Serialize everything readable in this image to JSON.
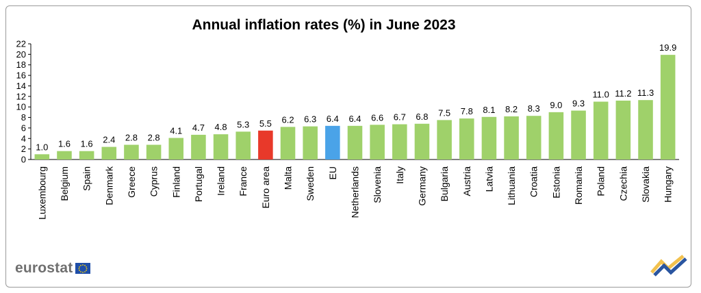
{
  "brand": {
    "logo_text": "eurostat"
  },
  "chart_data": {
    "type": "bar",
    "title": "Annual inflation rates (%) in June 2023",
    "xlabel": "",
    "ylabel": "",
    "ylim": [
      0,
      22
    ],
    "yticks": [
      0,
      2,
      4,
      6,
      8,
      10,
      12,
      14,
      16,
      18,
      20,
      22
    ],
    "grid": false,
    "categories": [
      "Luxembourg",
      "Belgium",
      "Spain",
      "Denmark",
      "Greece",
      "Cyprus",
      "Finland",
      "Portugal",
      "Ireland",
      "France",
      "Euro area",
      "Malta",
      "Sweden",
      "EU",
      "Netherlands",
      "Slovenia",
      "Italy",
      "Germany",
      "Bulgaria",
      "Austria",
      "Latvia",
      "Lithuania",
      "Croatia",
      "Estonia",
      "Romania",
      "Poland",
      "Czechia",
      "Slovakia",
      "Hungary"
    ],
    "values": [
      1.0,
      1.6,
      1.6,
      2.4,
      2.8,
      2.8,
      4.1,
      4.7,
      4.8,
      5.3,
      5.5,
      6.2,
      6.3,
      6.4,
      6.4,
      6.6,
      6.7,
      6.8,
      7.5,
      7.8,
      8.1,
      8.2,
      8.3,
      9.0,
      9.3,
      11.0,
      11.2,
      11.3,
      19.9
    ],
    "value_labels": [
      "1.0",
      "1.6",
      "1.6",
      "2.4",
      "2.8",
      "2.8",
      "4.1",
      "4.7",
      "4.8",
      "5.3",
      "5.5",
      "6.2",
      "6.3",
      "6.4",
      "6.4",
      "6.6",
      "6.7",
      "6.8",
      "7.5",
      "7.8",
      "8.1",
      "8.2",
      "8.3",
      "9.0",
      "9.3",
      "11.0",
      "11.2",
      "11.3",
      "19.9"
    ],
    "colors": {
      "default": "#9fd16a",
      "Euro area": "#e8392a",
      "EU": "#4aa3e8",
      "axis": "#000000",
      "text": "#000000"
    }
  }
}
